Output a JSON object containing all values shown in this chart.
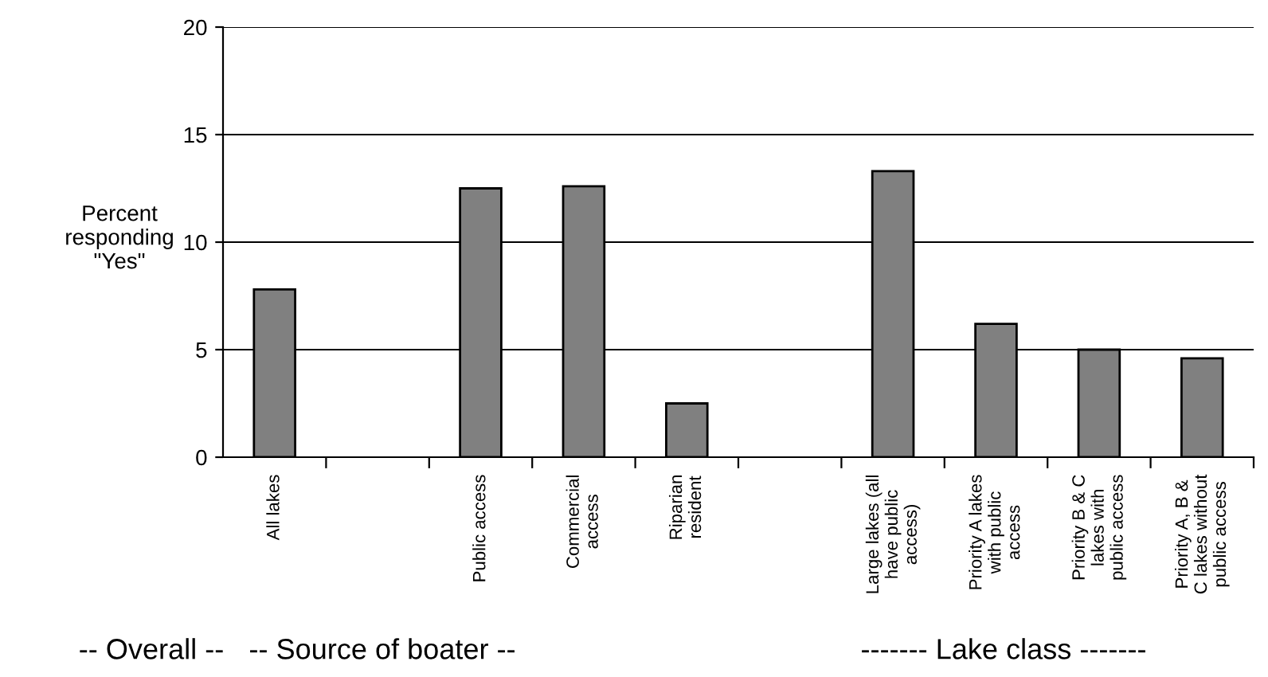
{
  "chart_data": {
    "type": "bar",
    "ylabel": "Percent\nresponding\n\"Yes\"",
    "categories": [
      "All lakes",
      null,
      "Public access",
      "Commercial\naccess",
      "Riparian\nresident",
      null,
      "Large lakes (all\nhave public\naccess)",
      "Priority A lakes\nwith public\naccess",
      "Priority B & C\nlakes with\npublic access",
      "Priority A, B &\nC lakes without\npublic access"
    ],
    "values": [
      7.8,
      null,
      12.5,
      12.6,
      2.5,
      null,
      13.3,
      6.2,
      5.0,
      4.6
    ],
    "color": "#808080",
    "ylim": [
      0,
      20
    ],
    "yticks": [
      0,
      5,
      10,
      15,
      20
    ],
    "grid": "y",
    "annotations": [
      "-- Overall --",
      "-- Source of boater --",
      "------- Lake class -------"
    ]
  }
}
